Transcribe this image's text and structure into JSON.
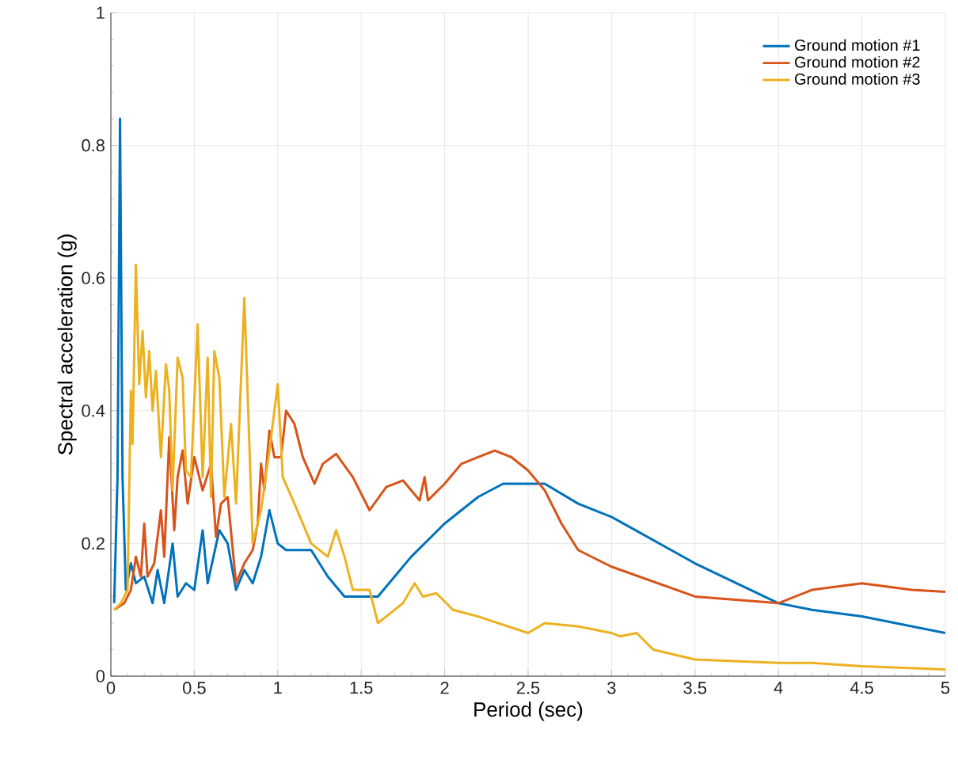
{
  "chart_data": {
    "type": "line",
    "xlabel": "Period (sec)",
    "ylabel": "Spectral acceleration (g)",
    "xlim": [
      0,
      5
    ],
    "ylim": [
      0,
      1
    ],
    "xticks": [
      0,
      0.5,
      1,
      1.5,
      2,
      2.5,
      3,
      3.5,
      4,
      4.5,
      5
    ],
    "yticks": [
      0,
      0.2,
      0.4,
      0.6,
      0.8,
      1
    ],
    "grid": true,
    "legend": "top right",
    "series": [
      {
        "name": "Ground motion #1",
        "color": "#0072bd",
        "x": [
          0.02,
          0.04,
          0.055,
          0.07,
          0.09,
          0.12,
          0.15,
          0.2,
          0.25,
          0.28,
          0.32,
          0.37,
          0.4,
          0.45,
          0.5,
          0.55,
          0.58,
          0.65,
          0.7,
          0.75,
          0.8,
          0.85,
          0.9,
          0.95,
          1.0,
          1.05,
          1.2,
          1.3,
          1.4,
          1.5,
          1.6,
          1.8,
          2.0,
          2.2,
          2.35,
          2.5,
          2.6,
          2.8,
          3.0,
          3.5,
          4.0,
          4.2,
          4.5,
          5.0
        ],
        "values": [
          0.11,
          0.3,
          0.84,
          0.3,
          0.13,
          0.17,
          0.14,
          0.15,
          0.11,
          0.16,
          0.11,
          0.2,
          0.12,
          0.14,
          0.13,
          0.22,
          0.14,
          0.22,
          0.2,
          0.13,
          0.16,
          0.14,
          0.18,
          0.25,
          0.2,
          0.19,
          0.19,
          0.15,
          0.12,
          0.12,
          0.12,
          0.18,
          0.23,
          0.27,
          0.29,
          0.29,
          0.29,
          0.26,
          0.24,
          0.17,
          0.11,
          0.1,
          0.09,
          0.065
        ]
      },
      {
        "name": "Ground motion #2",
        "color": "#d95319",
        "x": [
          0.02,
          0.08,
          0.12,
          0.15,
          0.18,
          0.2,
          0.22,
          0.26,
          0.3,
          0.32,
          0.35,
          0.38,
          0.4,
          0.43,
          0.46,
          0.5,
          0.55,
          0.6,
          0.63,
          0.66,
          0.7,
          0.75,
          0.8,
          0.85,
          0.88,
          0.9,
          0.92,
          0.95,
          0.98,
          1.02,
          1.05,
          1.1,
          1.15,
          1.22,
          1.27,
          1.35,
          1.45,
          1.55,
          1.65,
          1.75,
          1.85,
          1.88,
          1.9,
          2.0,
          2.1,
          2.2,
          2.3,
          2.4,
          2.5,
          2.6,
          2.7,
          2.8,
          3.0,
          3.5,
          4.0,
          4.2,
          4.5,
          4.8,
          5.0
        ],
        "values": [
          0.1,
          0.11,
          0.13,
          0.18,
          0.15,
          0.23,
          0.15,
          0.17,
          0.25,
          0.18,
          0.36,
          0.22,
          0.3,
          0.34,
          0.26,
          0.33,
          0.28,
          0.32,
          0.21,
          0.26,
          0.27,
          0.14,
          0.17,
          0.19,
          0.23,
          0.32,
          0.28,
          0.37,
          0.33,
          0.33,
          0.4,
          0.38,
          0.33,
          0.29,
          0.32,
          0.335,
          0.3,
          0.25,
          0.285,
          0.295,
          0.265,
          0.3,
          0.265,
          0.29,
          0.32,
          0.33,
          0.34,
          0.33,
          0.31,
          0.28,
          0.23,
          0.19,
          0.165,
          0.12,
          0.11,
          0.13,
          0.14,
          0.13,
          0.127
        ]
      },
      {
        "name": "Ground motion #3",
        "color": "#edb120",
        "x": [
          0.02,
          0.06,
          0.1,
          0.12,
          0.13,
          0.15,
          0.17,
          0.19,
          0.21,
          0.23,
          0.25,
          0.27,
          0.3,
          0.33,
          0.35,
          0.37,
          0.4,
          0.43,
          0.45,
          0.48,
          0.52,
          0.55,
          0.58,
          0.6,
          0.62,
          0.65,
          0.68,
          0.72,
          0.75,
          0.8,
          0.85,
          0.9,
          0.95,
          1.0,
          1.03,
          1.1,
          1.2,
          1.3,
          1.35,
          1.4,
          1.45,
          1.55,
          1.6,
          1.65,
          1.75,
          1.82,
          1.87,
          1.95,
          2.05,
          2.2,
          2.5,
          2.6,
          2.8,
          3.0,
          3.05,
          3.15,
          3.25,
          3.5,
          4.0,
          4.2,
          4.5,
          5.0
        ],
        "values": [
          0.1,
          0.11,
          0.13,
          0.43,
          0.35,
          0.62,
          0.44,
          0.52,
          0.42,
          0.49,
          0.4,
          0.46,
          0.33,
          0.47,
          0.43,
          0.28,
          0.48,
          0.45,
          0.31,
          0.3,
          0.53,
          0.3,
          0.48,
          0.27,
          0.49,
          0.45,
          0.27,
          0.38,
          0.26,
          0.57,
          0.2,
          0.25,
          0.34,
          0.44,
          0.3,
          0.26,
          0.2,
          0.18,
          0.22,
          0.18,
          0.13,
          0.13,
          0.08,
          0.09,
          0.11,
          0.14,
          0.12,
          0.125,
          0.1,
          0.09,
          0.065,
          0.08,
          0.075,
          0.065,
          0.06,
          0.065,
          0.04,
          0.025,
          0.02,
          0.02,
          0.015,
          0.01
        ]
      }
    ]
  }
}
